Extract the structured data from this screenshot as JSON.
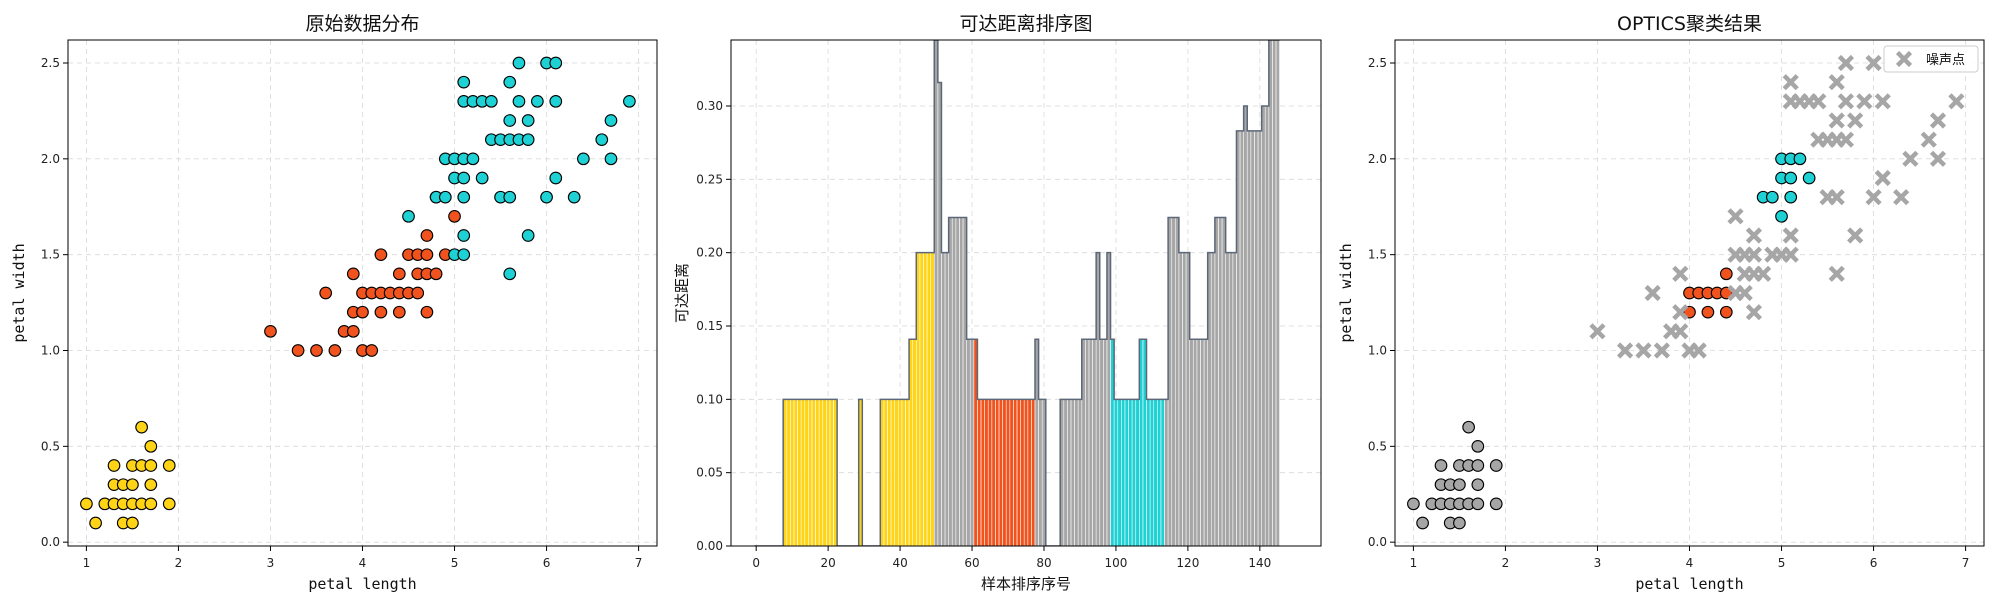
{
  "colors": {
    "yellow": "#FFD417",
    "red": "#F0531E",
    "cyan": "#1DD1D4",
    "gray": "#A6A6A6",
    "outline": "#5C6778"
  },
  "chart_data": [
    {
      "type": "scatter",
      "title": "原始数据分布",
      "xlabel": "petal length",
      "ylabel": "petal width",
      "xlim": [
        0.8,
        7.2
      ],
      "ylim": [
        -0.02,
        2.62
      ],
      "xticks": [
        1,
        2,
        3,
        4,
        5,
        6,
        7
      ],
      "yticks": [
        0.0,
        0.5,
        1.0,
        1.5,
        2.0,
        2.5
      ],
      "grid": true,
      "series": [
        {
          "color": "yellow",
          "points": [
            [
              1.0,
              0.2
            ],
            [
              1.1,
              0.1
            ],
            [
              1.2,
              0.2
            ],
            [
              1.3,
              0.2
            ],
            [
              1.3,
              0.3
            ],
            [
              1.3,
              0.4
            ],
            [
              1.4,
              0.1
            ],
            [
              1.4,
              0.2
            ],
            [
              1.4,
              0.3
            ],
            [
              1.5,
              0.1
            ],
            [
              1.5,
              0.2
            ],
            [
              1.5,
              0.3
            ],
            [
              1.5,
              0.4
            ],
            [
              1.6,
              0.2
            ],
            [
              1.6,
              0.4
            ],
            [
              1.6,
              0.6
            ],
            [
              1.7,
              0.2
            ],
            [
              1.7,
              0.3
            ],
            [
              1.7,
              0.4
            ],
            [
              1.7,
              0.5
            ],
            [
              1.9,
              0.2
            ],
            [
              1.9,
              0.4
            ]
          ]
        },
        {
          "color": "red",
          "points": [
            [
              3.0,
              1.1
            ],
            [
              3.3,
              1.0
            ],
            [
              3.5,
              1.0
            ],
            [
              3.6,
              1.3
            ],
            [
              3.7,
              1.0
            ],
            [
              3.8,
              1.1
            ],
            [
              3.9,
              1.1
            ],
            [
              3.9,
              1.2
            ],
            [
              3.9,
              1.4
            ],
            [
              4.0,
              1.0
            ],
            [
              4.0,
              1.2
            ],
            [
              4.0,
              1.3
            ],
            [
              4.1,
              1.0
            ],
            [
              4.1,
              1.3
            ],
            [
              4.2,
              1.2
            ],
            [
              4.2,
              1.3
            ],
            [
              4.2,
              1.5
            ],
            [
              4.3,
              1.3
            ],
            [
              4.4,
              1.2
            ],
            [
              4.4,
              1.3
            ],
            [
              4.4,
              1.4
            ],
            [
              4.5,
              1.3
            ],
            [
              4.5,
              1.5
            ],
            [
              4.6,
              1.3
            ],
            [
              4.6,
              1.4
            ],
            [
              4.6,
              1.5
            ],
            [
              4.7,
              1.2
            ],
            [
              4.7,
              1.4
            ],
            [
              4.7,
              1.5
            ],
            [
              4.7,
              1.6
            ],
            [
              4.8,
              1.4
            ],
            [
              4.8,
              1.8
            ],
            [
              4.9,
              1.5
            ],
            [
              5.0,
              1.7
            ]
          ]
        },
        {
          "color": "cyan",
          "points": [
            [
              4.5,
              1.7
            ],
            [
              4.8,
              1.8
            ],
            [
              4.9,
              1.8
            ],
            [
              4.9,
              2.0
            ],
            [
              5.0,
              1.5
            ],
            [
              5.0,
              1.9
            ],
            [
              5.0,
              2.0
            ],
            [
              5.1,
              1.5
            ],
            [
              5.1,
              1.6
            ],
            [
              5.1,
              1.8
            ],
            [
              5.1,
              1.9
            ],
            [
              5.1,
              2.0
            ],
            [
              5.1,
              2.3
            ],
            [
              5.1,
              2.4
            ],
            [
              5.2,
              2.0
            ],
            [
              5.2,
              2.3
            ],
            [
              5.3,
              1.9
            ],
            [
              5.3,
              2.3
            ],
            [
              5.4,
              2.1
            ],
            [
              5.4,
              2.3
            ],
            [
              5.5,
              1.8
            ],
            [
              5.5,
              2.1
            ],
            [
              5.6,
              1.4
            ],
            [
              5.6,
              1.8
            ],
            [
              5.6,
              2.1
            ],
            [
              5.6,
              2.2
            ],
            [
              5.6,
              2.4
            ],
            [
              5.7,
              2.1
            ],
            [
              5.7,
              2.3
            ],
            [
              5.7,
              2.5
            ],
            [
              5.8,
              1.6
            ],
            [
              5.8,
              2.2
            ],
            [
              5.8,
              2.1
            ],
            [
              5.9,
              2.3
            ],
            [
              6.0,
              1.8
            ],
            [
              6.0,
              2.5
            ],
            [
              6.1,
              1.9
            ],
            [
              6.1,
              2.3
            ],
            [
              6.1,
              2.5
            ],
            [
              6.3,
              1.8
            ],
            [
              6.4,
              2.0
            ],
            [
              6.6,
              2.1
            ],
            [
              6.7,
              2.0
            ],
            [
              6.7,
              2.2
            ],
            [
              6.9,
              2.3
            ]
          ]
        }
      ]
    },
    {
      "type": "bar",
      "title": "可达距离排序图",
      "xlabel": "样本排序序号",
      "ylabel": "可达距离",
      "xlim": [
        -7,
        157
      ],
      "ylim": [
        0,
        0.345
      ],
      "xticks": [
        0,
        20,
        40,
        60,
        80,
        100,
        120,
        140
      ],
      "yticks": [
        0.0,
        0.05,
        0.1,
        0.15,
        0.2,
        0.25,
        0.3
      ],
      "grid": true,
      "reachability": [
        0,
        0,
        0,
        0,
        0,
        0,
        0,
        0,
        0.1,
        0.1,
        0.1,
        0.1,
        0.1,
        0.1,
        0.1,
        0.1,
        0.1,
        0.1,
        0.1,
        0.1,
        0.1,
        0.1,
        0.1,
        0,
        0,
        0,
        0,
        0,
        0,
        0.1,
        0,
        0,
        0,
        0,
        0,
        0.1,
        0.1,
        0.1,
        0.1,
        0.1,
        0.1,
        0.1,
        0.1,
        0.141,
        0.141,
        0.2,
        0.2,
        0.2,
        0.2,
        0.2,
        0.35,
        0.316,
        0.2,
        0.2,
        0.224,
        0.224,
        0.224,
        0.224,
        0.224,
        0.141,
        0.141,
        0.141,
        0.1,
        0.1,
        0.1,
        0.1,
        0.1,
        0.1,
        0.1,
        0.1,
        0.1,
        0.1,
        0.1,
        0.1,
        0.1,
        0.1,
        0.1,
        0.1,
        0.141,
        0.1,
        0.1,
        0,
        0,
        0,
        0,
        0.1,
        0.1,
        0.1,
        0.1,
        0.1,
        0.1,
        0.141,
        0.141,
        0.141,
        0.141,
        0.2,
        0.141,
        0.141,
        0.2,
        0.141,
        0.1,
        0.1,
        0.1,
        0.1,
        0.1,
        0.1,
        0.1,
        0.141,
        0.141,
        0.1,
        0.1,
        0.1,
        0.1,
        0.1,
        0.1,
        0.224,
        0.224,
        0.224,
        0.2,
        0.2,
        0.2,
        0.141,
        0.141,
        0.141,
        0.141,
        0.141,
        0.2,
        0.2,
        0.224,
        0.224,
        0.224,
        0.2,
        0.2,
        0.2,
        0.283,
        0.283,
        0.3,
        0.283,
        0.283,
        0.283,
        0.283,
        0.3,
        0.3,
        0.35,
        0.35,
        0.35
      ],
      "segments": [
        {
          "from": 0,
          "to": 49,
          "color": "yellow"
        },
        {
          "from": 50,
          "to": 60,
          "color": "gray"
        },
        {
          "from": 61,
          "to": 77,
          "color": "red"
        },
        {
          "from": 78,
          "to": 98,
          "color": "gray"
        },
        {
          "from": 99,
          "to": 113,
          "color": "cyan"
        },
        {
          "from": 114,
          "to": 149,
          "color": "gray"
        }
      ]
    },
    {
      "type": "scatter",
      "title": "OPTICS聚类结果",
      "xlabel": "petal length",
      "ylabel": "petal width",
      "xlim": [
        0.8,
        7.2
      ],
      "ylim": [
        -0.02,
        2.62
      ],
      "xticks": [
        1,
        2,
        3,
        4,
        5,
        6,
        7
      ],
      "yticks": [
        0.0,
        0.5,
        1.0,
        1.5,
        2.0,
        2.5
      ],
      "grid": true,
      "legend": {
        "label": "噪声点",
        "position": "top-right"
      },
      "series": [
        {
          "color": "gray",
          "marker": "circle",
          "points": [
            [
              1.0,
              0.2
            ],
            [
              1.1,
              0.1
            ],
            [
              1.2,
              0.2
            ],
            [
              1.3,
              0.2
            ],
            [
              1.3,
              0.3
            ],
            [
              1.3,
              0.4
            ],
            [
              1.4,
              0.1
            ],
            [
              1.4,
              0.2
            ],
            [
              1.4,
              0.3
            ],
            [
              1.5,
              0.1
            ],
            [
              1.5,
              0.2
            ],
            [
              1.5,
              0.3
            ],
            [
              1.5,
              0.4
            ],
            [
              1.6,
              0.2
            ],
            [
              1.6,
              0.4
            ],
            [
              1.6,
              0.6
            ],
            [
              1.7,
              0.2
            ],
            [
              1.7,
              0.3
            ],
            [
              1.7,
              0.4
            ],
            [
              1.7,
              0.5
            ],
            [
              1.9,
              0.2
            ],
            [
              1.9,
              0.4
            ]
          ]
        },
        {
          "color": "red",
          "marker": "circle",
          "points": [
            [
              4.0,
              1.2
            ],
            [
              4.0,
              1.3
            ],
            [
              4.1,
              1.3
            ],
            [
              4.2,
              1.2
            ],
            [
              4.2,
              1.3
            ],
            [
              4.3,
              1.3
            ],
            [
              4.4,
              1.2
            ],
            [
              4.4,
              1.3
            ],
            [
              4.4,
              1.4
            ]
          ]
        },
        {
          "color": "cyan",
          "marker": "circle",
          "points": [
            [
              4.8,
              1.8
            ],
            [
              4.9,
              1.8
            ],
            [
              5.0,
              1.7
            ],
            [
              5.0,
              1.9
            ],
            [
              5.0,
              2.0
            ],
            [
              5.1,
              1.8
            ],
            [
              5.1,
              1.9
            ],
            [
              5.1,
              2.0
            ],
            [
              5.2,
              2.0
            ],
            [
              5.3,
              1.9
            ]
          ]
        },
        {
          "color": "gray",
          "marker": "x",
          "points": [
            [
              3.0,
              1.1
            ],
            [
              3.3,
              1.0
            ],
            [
              3.5,
              1.0
            ],
            [
              3.6,
              1.3
            ],
            [
              3.7,
              1.0
            ],
            [
              3.8,
              1.1
            ],
            [
              3.9,
              1.1
            ],
            [
              3.9,
              1.2
            ],
            [
              3.9,
              1.4
            ],
            [
              4.0,
              1.0
            ],
            [
              4.1,
              1.0
            ],
            [
              4.5,
              1.3
            ],
            [
              4.5,
              1.5
            ],
            [
              4.5,
              1.7
            ],
            [
              4.6,
              1.3
            ],
            [
              4.6,
              1.4
            ],
            [
              4.6,
              1.5
            ],
            [
              4.7,
              1.2
            ],
            [
              4.7,
              1.4
            ],
            [
              4.7,
              1.5
            ],
            [
              4.7,
              1.6
            ],
            [
              4.8,
              1.4
            ],
            [
              4.9,
              1.5
            ],
            [
              5.0,
              1.5
            ],
            [
              5.1,
              1.5
            ],
            [
              5.1,
              1.6
            ],
            [
              5.1,
              2.3
            ],
            [
              5.1,
              2.4
            ],
            [
              5.2,
              2.3
            ],
            [
              5.3,
              2.3
            ],
            [
              5.4,
              2.1
            ],
            [
              5.4,
              2.3
            ],
            [
              5.5,
              1.8
            ],
            [
              5.5,
              2.1
            ],
            [
              5.6,
              1.4
            ],
            [
              5.6,
              1.8
            ],
            [
              5.6,
              2.1
            ],
            [
              5.6,
              2.2
            ],
            [
              5.6,
              2.4
            ],
            [
              5.7,
              2.1
            ],
            [
              5.7,
              2.3
            ],
            [
              5.7,
              2.5
            ],
            [
              5.8,
              1.6
            ],
            [
              5.8,
              2.2
            ],
            [
              5.9,
              2.3
            ],
            [
              6.0,
              1.8
            ],
            [
              6.0,
              2.5
            ],
            [
              6.1,
              1.9
            ],
            [
              6.1,
              2.3
            ],
            [
              6.3,
              1.8
            ],
            [
              6.4,
              2.0
            ],
            [
              6.6,
              2.1
            ],
            [
              6.7,
              2.0
            ],
            [
              6.7,
              2.2
            ],
            [
              6.9,
              2.3
            ]
          ]
        }
      ]
    }
  ]
}
